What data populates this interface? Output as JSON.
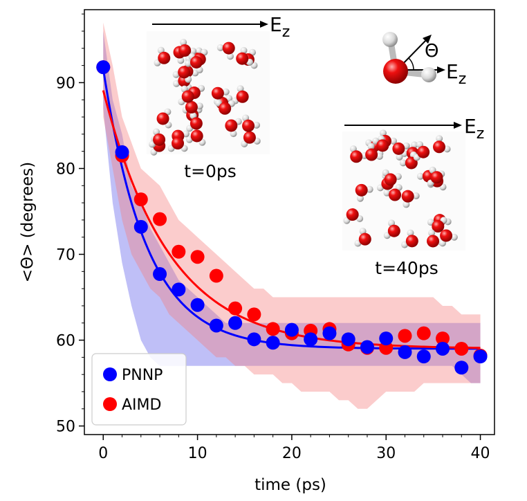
{
  "chart_data": {
    "type": "scatter",
    "xlabel": "time (ps)",
    "ylabel": "<Θ> (degrees)",
    "xlim": [
      -2,
      41.5
    ],
    "ylim": [
      49,
      98.5
    ],
    "xticks": [
      0,
      10,
      20,
      30,
      40
    ],
    "yticks": [
      50,
      60,
      70,
      80,
      90
    ],
    "xtick_labels": [
      "0",
      "10",
      "20",
      "30",
      "40"
    ],
    "ytick_labels": [
      "50",
      "60",
      "70",
      "80",
      "90"
    ],
    "legend_position": "lower-left",
    "series": [
      {
        "name": "PNNP",
        "color": "#0000ff",
        "band_color": "#7070ee",
        "x": [
          0,
          2,
          4,
          6,
          8,
          10,
          12,
          14,
          16,
          18,
          20,
          22,
          24,
          26,
          28,
          30,
          32,
          34,
          36,
          38,
          40
        ],
        "values": [
          91.8,
          81.9,
          73.2,
          67.7,
          65.9,
          64.1,
          61.7,
          62.0,
          60.1,
          59.7,
          61.2,
          60.1,
          60.8,
          60.1,
          59.2,
          60.2,
          58.6,
          58.1,
          59.0,
          56.8,
          58.1
        ],
        "fit": {
          "model": "exponential decay",
          "A": 59.0,
          "B": 32.6,
          "tau": 4.6
        },
        "band": {
          "x": [
            0,
            1,
            2,
            3,
            4,
            5,
            6,
            7,
            8,
            9,
            10,
            11,
            12,
            13,
            14,
            15,
            16,
            17,
            18,
            19,
            20,
            21,
            22,
            23,
            24,
            25,
            26,
            27,
            28,
            29,
            30,
            31,
            32,
            33,
            34,
            35,
            36,
            37,
            38,
            39,
            40
          ],
          "upper": [
            96,
            88,
            84,
            78,
            76,
            73,
            71,
            69,
            67,
            66,
            65,
            64,
            63,
            62,
            62,
            62,
            62,
            62,
            62,
            62,
            62,
            62,
            62,
            62,
            62,
            62,
            62,
            62,
            62,
            62,
            62,
            62,
            62,
            62,
            62,
            62,
            62,
            62,
            62,
            62,
            62
          ],
          "lower": [
            87,
            76,
            69,
            64,
            60,
            58,
            57,
            57,
            57,
            57,
            57,
            57,
            57,
            57,
            57,
            57,
            57,
            57,
            57,
            57,
            57,
            57,
            57,
            57,
            57,
            57,
            57,
            57,
            57,
            57,
            57,
            57,
            57,
            57,
            57,
            57,
            57,
            57,
            56,
            55,
            55
          ]
        }
      },
      {
        "name": "AIMD",
        "color": "#ff0000",
        "band_color": "#f48080",
        "x": [
          0,
          2,
          4,
          6,
          8,
          10,
          12,
          14,
          16,
          18,
          20,
          22,
          24,
          26,
          28,
          30,
          32,
          34,
          36,
          38,
          40
        ],
        "values": [
          91.8,
          81.5,
          76.4,
          74.1,
          70.3,
          69.7,
          67.5,
          63.7,
          63.0,
          61.3,
          60.8,
          61.1,
          61.3,
          59.5,
          59.1,
          59.1,
          60.5,
          60.8,
          60.2,
          59.0,
          58.2
        ],
        "fit": {
          "model": "exponential decay",
          "A": 59.0,
          "B": 30.1,
          "tau": 7.0
        },
        "band": {
          "x": [
            0,
            1,
            2,
            3,
            4,
            5,
            6,
            7,
            8,
            9,
            10,
            11,
            12,
            13,
            14,
            15,
            16,
            17,
            18,
            19,
            20,
            21,
            22,
            23,
            24,
            25,
            26,
            27,
            28,
            29,
            30,
            31,
            32,
            33,
            34,
            35,
            36,
            37,
            38,
            39,
            40
          ],
          "upper": [
            97,
            92,
            86,
            83,
            80,
            79,
            78,
            76,
            74,
            73,
            72,
            71,
            70,
            69,
            68,
            67,
            66,
            66,
            65,
            65,
            65,
            65,
            65,
            65,
            65,
            65,
            65,
            65,
            65,
            65,
            65,
            65,
            65,
            65,
            65,
            65,
            64,
            64,
            63,
            63,
            63
          ],
          "lower": [
            86,
            80,
            74,
            70,
            68,
            66,
            65,
            63,
            62,
            61,
            60,
            59,
            58,
            58,
            57,
            57,
            56,
            56,
            56,
            55,
            55,
            54,
            54,
            54,
            54,
            53,
            53,
            52,
            52,
            53,
            54,
            54,
            54,
            54,
            55,
            55,
            55,
            55,
            55,
            55,
            55
          ]
        }
      }
    ],
    "annotations": {
      "field_label": "E",
      "field_subscript": "z",
      "angle_label": "Θ",
      "snapshot_labels": [
        "t=0ps",
        "t=40ps"
      ]
    }
  }
}
